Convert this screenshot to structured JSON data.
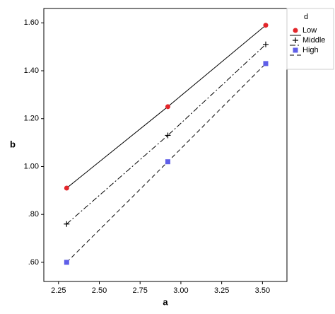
{
  "chart_data": {
    "type": "line",
    "x_label": "a",
    "y_label": "b",
    "legend_title": "d",
    "x": [
      2.3,
      2.92,
      3.52
    ],
    "series": [
      {
        "name": "Low",
        "color": "#e3262b",
        "marker": "circle",
        "dash": "none",
        "values": [
          0.91,
          1.25,
          1.59
        ]
      },
      {
        "name": "Middle",
        "color": "#000000",
        "marker": "plus",
        "dash": "8 3 2 3",
        "values": [
          0.76,
          1.13,
          1.51
        ]
      },
      {
        "name": "High",
        "color": "#5f5fe8",
        "marker": "square",
        "dash": "6 4",
        "values": [
          0.6,
          1.02,
          1.43
        ]
      }
    ],
    "xlim": [
      2.16,
      3.65
    ],
    "ylim": [
      0.52,
      1.66
    ],
    "xticks": [
      2.25,
      {
        "value": 2.5,
        "label": "2.50"
      },
      2.75,
      {
        "value": 3,
        "label": "3.00"
      },
      3.25,
      {
        "value": 3.5,
        "label": "3.50"
      }
    ],
    "yticks": [
      {
        "value": 0.6,
        "label": ".60"
      },
      {
        "value": 0.8,
        "label": ".80"
      },
      {
        "value": 1,
        "label": "1.00"
      },
      {
        "value": 1.2,
        "label": "1.20"
      },
      {
        "value": 1.4,
        "label": "1.40"
      },
      {
        "value": 1.6,
        "label": "1.60"
      }
    ],
    "legend": "right"
  }
}
